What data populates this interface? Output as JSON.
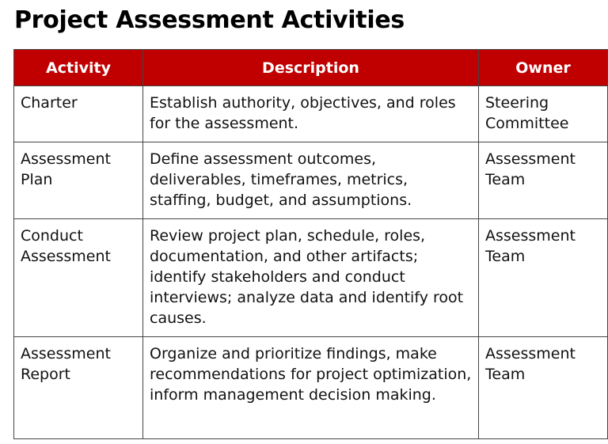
{
  "title": "Project Assessment Activities",
  "colors": {
    "header_background": "#c00000",
    "header_text": "#ffffff",
    "border": "#444444"
  },
  "table": {
    "headers": [
      "Activity",
      "Description",
      "Owner"
    ],
    "rows": [
      {
        "activity": "Charter",
        "description": "Establish authority, objectives, and roles for the assessment.",
        "owner": "Steering Committee"
      },
      {
        "activity": "Assessment Plan",
        "description": "Define assessment outcomes, deliverables, timeframes, metrics, staffing, budget, and assumptions.",
        "owner": "Assessment Team"
      },
      {
        "activity": "Conduct Assessment",
        "description": "Review project plan, schedule, roles, documentation, and other artifacts; identify stakeholders and conduct interviews; analyze data and identify root causes.",
        "owner": "Assessment Team"
      },
      {
        "activity": "Assessment Report",
        "description": "Organize and prioritize findings, make recommendations for project optimization, inform management decision making.",
        "owner": "Assessment Team"
      }
    ]
  }
}
